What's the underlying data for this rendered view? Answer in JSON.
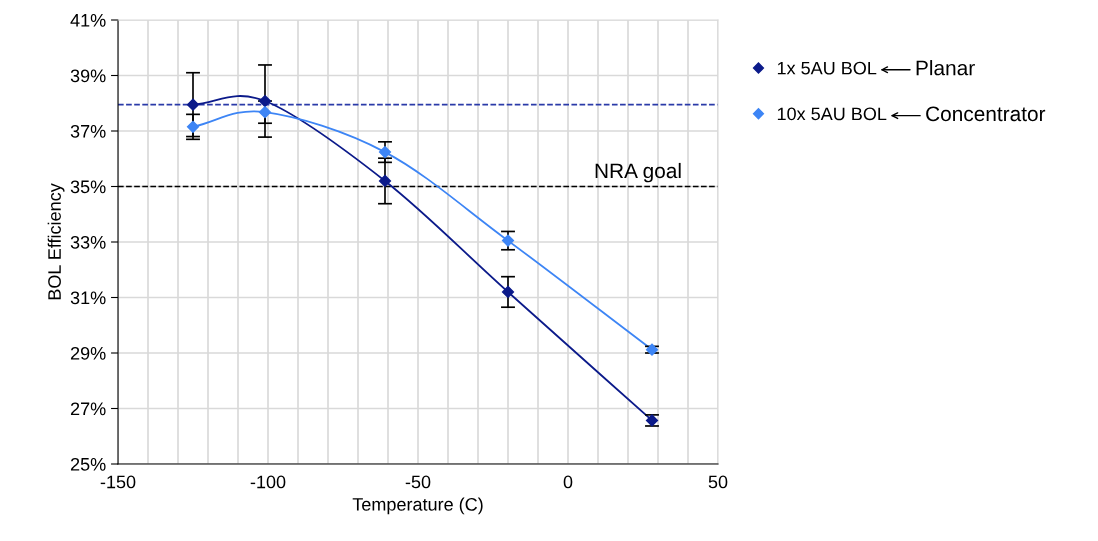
{
  "chart_data": {
    "type": "line",
    "xlabel": "Temperature (C)",
    "ylabel": "BOL Efficiency",
    "x": [
      -125,
      -101,
      -61,
      -20,
      28
    ],
    "series": [
      {
        "name": "1x 5AU BOL",
        "color": "#0b1a8a",
        "values": [
          37.95,
          38.08,
          35.2,
          31.2,
          26.57
        ],
        "errors": [
          1.15,
          1.3,
          0.82,
          0.55,
          0.2
        ]
      },
      {
        "name": "10x 5AU BOL",
        "color": "#3d85f5",
        "values": [
          37.15,
          37.68,
          36.24,
          33.05,
          29.12
        ],
        "errors": [
          0.45,
          0.4,
          0.37,
          0.33,
          0.12
        ]
      }
    ],
    "xlim": [
      -150,
      50
    ],
    "xticks": [
      -150,
      {
        "value": -140,
        "label": null
      },
      {
        "value": -130,
        "label": null
      },
      {
        "value": -120,
        "label": null
      },
      {
        "value": -110,
        "label": null
      },
      -100,
      {
        "value": -90,
        "label": null
      },
      {
        "value": -80,
        "label": null
      },
      {
        "value": -70,
        "label": null
      },
      {
        "value": -60,
        "label": null
      },
      -50,
      {
        "value": -40,
        "label": null
      },
      {
        "value": -30,
        "label": null
      },
      {
        "value": -20,
        "label": null
      },
      {
        "value": -10,
        "label": null
      },
      0,
      {
        "value": 10,
        "label": null
      },
      {
        "value": 20,
        "label": null
      },
      {
        "value": 30,
        "label": null
      },
      {
        "value": 40,
        "label": null
      },
      50
    ],
    "ylim": [
      25,
      41
    ],
    "yticks": [
      {
        "value": 25,
        "label": "25%"
      },
      {
        "value": 27,
        "label": "27%"
      },
      {
        "value": 29,
        "label": "29%"
      },
      {
        "value": 31,
        "label": "31%"
      },
      {
        "value": 33,
        "label": "33%"
      },
      {
        "value": 35,
        "label": "35%"
      },
      {
        "value": 37,
        "label": "37%"
      },
      {
        "value": 39,
        "label": "39%"
      },
      {
        "value": 41,
        "label": "41%"
      }
    ],
    "ref_lines": [
      {
        "axis": "y",
        "value": 37.95,
        "label": null,
        "color": "#2a3aa8",
        "line_style": "dashed"
      },
      {
        "axis": "y",
        "value": 35,
        "label": "NRA goal",
        "color": "#000000",
        "line_style": "dashed"
      }
    ],
    "annotations": [
      "Planar",
      "Concentrator"
    ],
    "grid": true,
    "legend": "right",
    "marker": "diamond",
    "line_style": "solid"
  }
}
